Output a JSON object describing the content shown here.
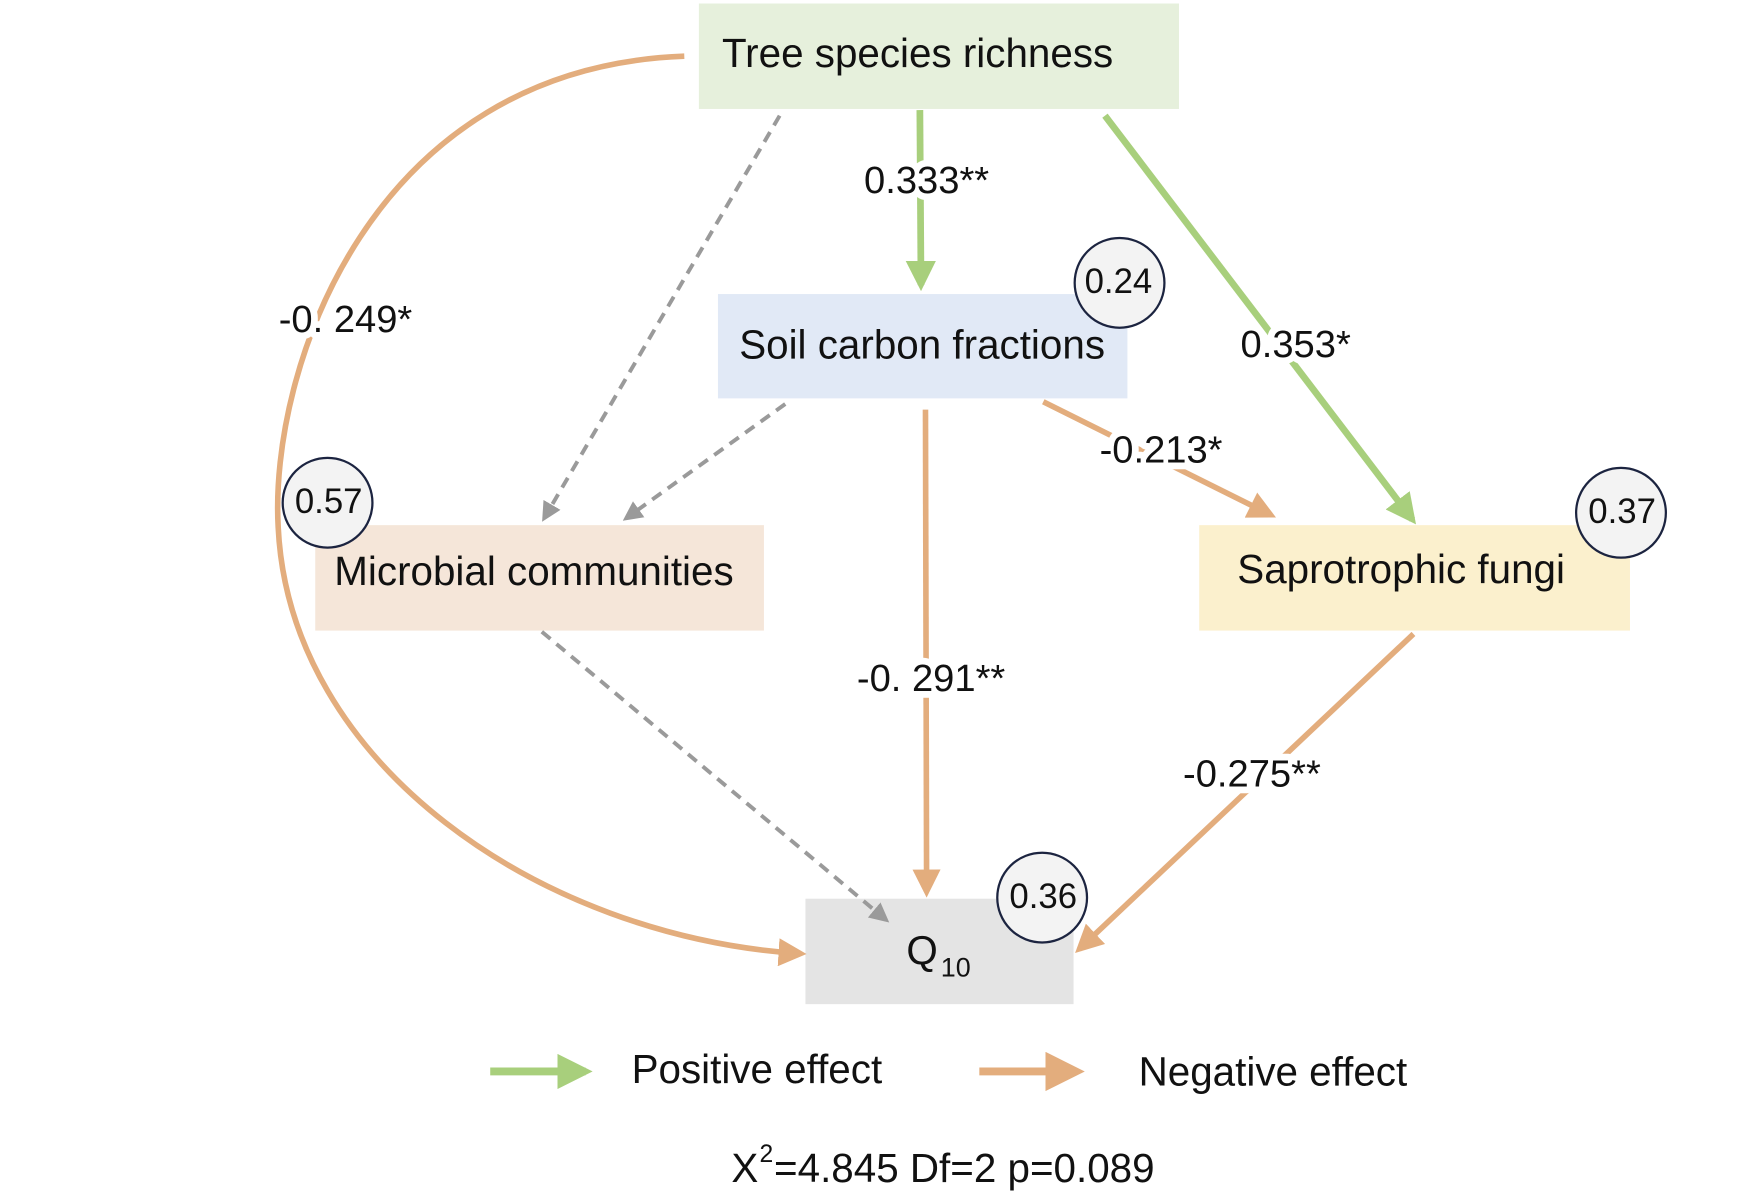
{
  "nodes": [
    {
      "label": "Tree species richness"
    },
    {
      "label": "Soil carbon fractions",
      "r2": "0.24"
    },
    {
      "label": "Microbial communities",
      "r2": "0.57"
    },
    {
      "label": "Saprotrophic fungi",
      "r2": "0.37"
    },
    {
      "label": "Q",
      "subscript": "10",
      "r2": "0.36"
    }
  ],
  "edges": [
    {
      "label": "0.333**"
    },
    {
      "label": "0.353*"
    },
    {
      "label": "-0. 249*"
    },
    {
      "label": "-0.213*"
    },
    {
      "label": "-0. 291**"
    },
    {
      "label": "-0.275**"
    }
  ],
  "legend": {
    "positive": "Positive effect",
    "negative": "Negative effect"
  },
  "footer": {
    "symbol": "X",
    "superscript": "2",
    "text": "=4.845 Df=2 p=0.089"
  }
}
